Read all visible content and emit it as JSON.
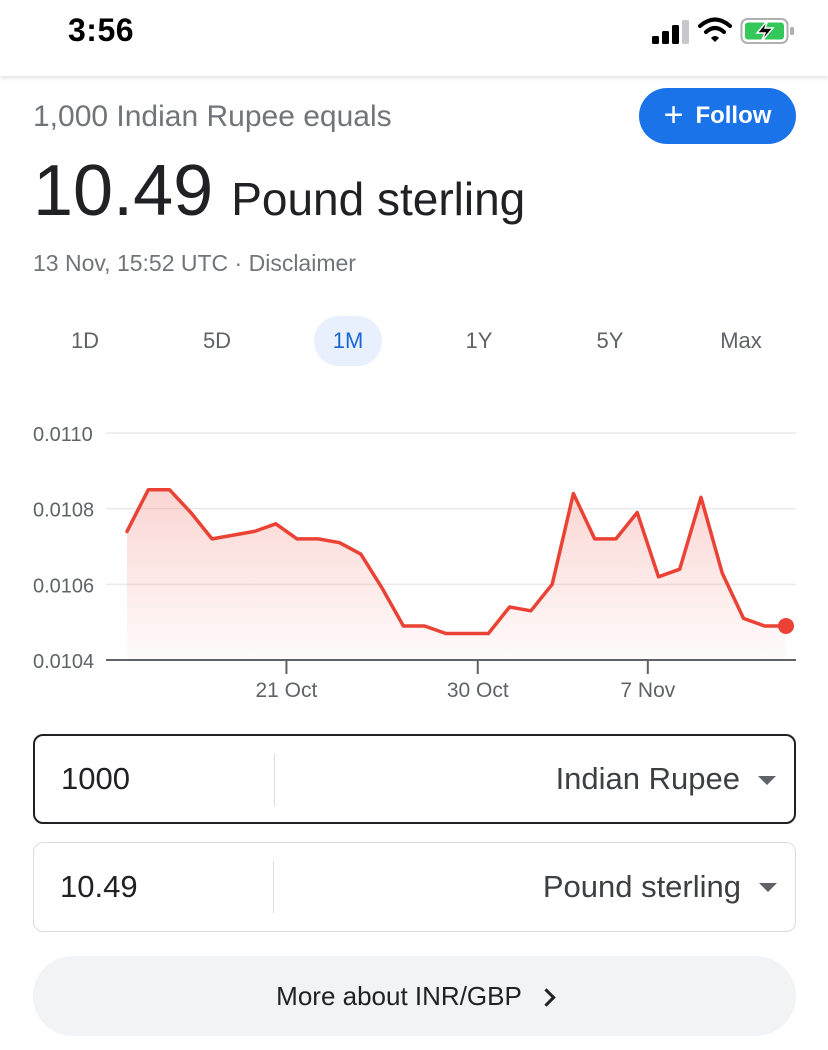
{
  "status_bar": {
    "time": "3:56"
  },
  "converter": {
    "prefix": "1,000 Indian Rupee equals",
    "follow_label": "Follow",
    "result_value": "10.49",
    "result_currency": "Pound sterling",
    "timestamp": "13 Nov, 15:52 UTC · Disclaimer"
  },
  "range_tabs": [
    "1D",
    "5D",
    "1M",
    "1Y",
    "5Y",
    "Max"
  ],
  "active_range": "1M",
  "chart_data": {
    "type": "area",
    "title": "",
    "xlabel": "",
    "ylabel": "",
    "ylim": [
      0.0104,
      0.011
    ],
    "yticks": [
      "0.0110",
      "0.0108",
      "0.0106",
      "0.0104"
    ],
    "ytick_values": [
      0.011,
      0.0108,
      0.0106,
      0.0104
    ],
    "xtick_labels": [
      "21 Oct",
      "30 Oct",
      "7 Nov"
    ],
    "xtick_values": [
      21,
      30,
      38
    ],
    "x_start": 13.5,
    "x_end": 44.5,
    "color": "#ea4335",
    "grid": true,
    "x": [
      13.5,
      14.5,
      15.5,
      16.5,
      17.5,
      18.5,
      19.5,
      20.5,
      21.5,
      22.5,
      23.5,
      24.5,
      25.5,
      26.5,
      27.5,
      28.5,
      29.5,
      30.5,
      31.5,
      32.5,
      33.5,
      34.5,
      35.5,
      36.5,
      37.5,
      38.5,
      39.5,
      40.5,
      41.5,
      42.5,
      43.5,
      44.5
    ],
    "values": [
      0.01074,
      0.01085,
      0.01085,
      0.01079,
      0.01072,
      0.01073,
      0.01074,
      0.01076,
      0.01072,
      0.01072,
      0.01071,
      0.01068,
      0.01059,
      0.01049,
      0.01049,
      0.01047,
      0.01047,
      0.01047,
      0.01054,
      0.01053,
      0.0106,
      0.01084,
      0.01072,
      0.01072,
      0.01079,
      0.01062,
      0.01064,
      0.01083,
      0.01063,
      0.01051,
      0.01049,
      0.01049
    ]
  },
  "fields": [
    {
      "amount": "1000",
      "currency": "Indian Rupee"
    },
    {
      "amount": "10.49",
      "currency": "Pound sterling"
    }
  ],
  "more_about": "More about INR/GBP"
}
